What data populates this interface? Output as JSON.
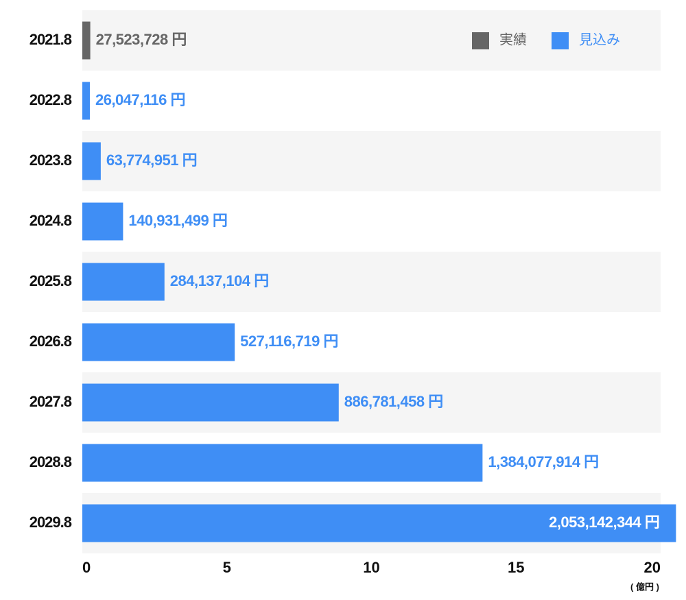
{
  "chart_data": {
    "type": "hbar",
    "x_label": "( 億円 )",
    "categories": [
      "2021.8",
      "2022.8",
      "2023.8",
      "2024.8",
      "2025.8",
      "2026.8",
      "2027.8",
      "2028.8",
      "2029.8"
    ],
    "series": [
      {
        "name": "実績",
        "color": "#666666",
        "values": [
          0.27523728,
          null,
          null,
          null,
          null,
          null,
          null,
          null,
          null
        ],
        "value_labels": [
          "27,523,728 円",
          null,
          null,
          null,
          null,
          null,
          null,
          null,
          null
        ]
      },
      {
        "name": "見込み",
        "color": "#3f8ef5",
        "values": [
          null,
          0.26047116,
          0.63774951,
          1.40931499,
          2.84137104,
          5.27116719,
          8.86781458,
          13.84077914,
          20.53142344
        ],
        "value_labels": [
          null,
          "26,047,116 円",
          "63,774,951 円",
          "140,931,499 円",
          "284,137,104 円",
          "527,116,719 円",
          "886,781,458 円",
          "1,384,077,914 円",
          "2,053,142,344 円"
        ]
      }
    ],
    "xlim": [
      0,
      20
    ],
    "xticks": [
      0,
      5,
      10,
      15,
      20
    ],
    "legend": "top-right"
  }
}
